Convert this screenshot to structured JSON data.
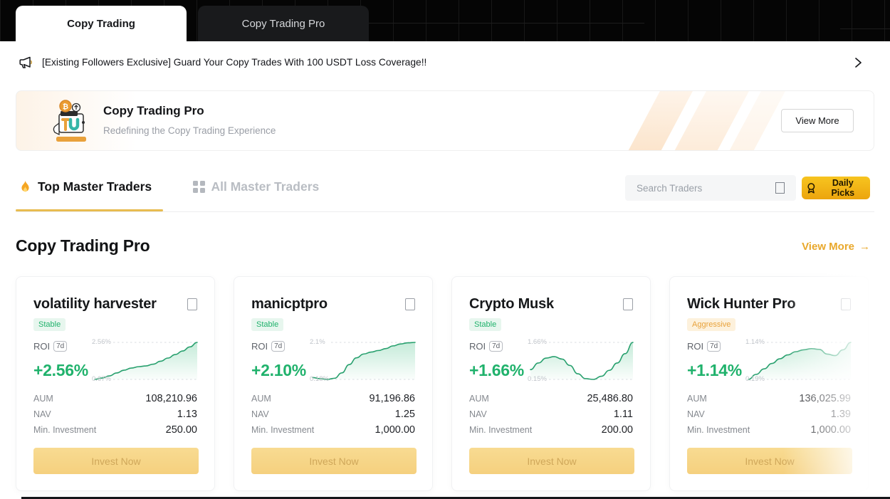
{
  "header": {
    "tabs": [
      {
        "label": "Copy Trading",
        "active": true
      },
      {
        "label": "Copy Trading Pro",
        "active": false
      }
    ]
  },
  "announcement": {
    "text": "[Existing Followers Exclusive] Guard Your Copy Trades With 100 USDT Loss Coverage!!"
  },
  "promo": {
    "title": "Copy Trading Pro",
    "subtitle": "Redefining the Copy Trading Experience",
    "button": "View More"
  },
  "nav_tabs": {
    "top_masters": "Top Master Traders",
    "all_masters": "All Master Traders"
  },
  "search": {
    "placeholder": "Search Traders"
  },
  "daily_picks": {
    "label": "Daily Picks"
  },
  "section": {
    "title": "Copy Trading Pro",
    "view_more": "View More",
    "arrow": "→"
  },
  "labels": {
    "roi": "ROI",
    "period": "7d",
    "aum": "AUM",
    "nav": "NAV",
    "min_investment": "Min. Investment",
    "invest": "Invest Now"
  },
  "cards": [
    {
      "name": "volatility harvester",
      "badge": "Stable",
      "badge_type": "stable",
      "roi": "+2.56%",
      "chart_high": "2.56%",
      "chart_low": "0.67%",
      "aum": "108,210.96",
      "nav": "1.13",
      "min_investment": "250.00"
    },
    {
      "name": "manicptpro",
      "badge": "Stable",
      "badge_type": "stable",
      "roi": "+2.10%",
      "chart_high": "2.1%",
      "chart_low": "0.18%",
      "aum": "91,196.86",
      "nav": "1.25",
      "min_investment": "1,000.00"
    },
    {
      "name": "Crypto Musk",
      "badge": "Stable",
      "badge_type": "stable",
      "roi": "+1.66%",
      "chart_high": "1.66%",
      "chart_low": "0.15%",
      "aum": "25,486.80",
      "nav": "1.11",
      "min_investment": "200.00"
    },
    {
      "name": "Wick Hunter Pro",
      "badge": "Aggressive",
      "badge_type": "aggressive",
      "roi": "+1.14%",
      "chart_high": "1.14%",
      "chart_low": "0.19%",
      "aum": "136,025.99",
      "nav": "1.39",
      "min_investment": "1,000.00"
    }
  ],
  "chart_data": [
    {
      "type": "line",
      "trader": "volatility harvester",
      "ylabel": "ROI %",
      "high": 2.56,
      "low": 0.67,
      "values": [
        0.67,
        0.74,
        0.85,
        1.0,
        1.14,
        1.25,
        1.32,
        1.36,
        1.45,
        1.6,
        1.76,
        1.94,
        2.12,
        2.33,
        2.56
      ]
    },
    {
      "type": "line",
      "trader": "manicptpro",
      "ylabel": "ROI %",
      "high": 2.1,
      "low": 0.18,
      "values": [
        0.28,
        0.22,
        0.18,
        0.24,
        0.52,
        0.95,
        1.3,
        1.5,
        1.6,
        1.68,
        1.78,
        1.92,
        2.02,
        2.08,
        2.1
      ]
    },
    {
      "type": "line",
      "trader": "Crypto Musk",
      "ylabel": "ROI %",
      "high": 1.66,
      "low": 0.15,
      "values": [
        0.55,
        0.82,
        1.02,
        1.08,
        0.98,
        0.72,
        0.38,
        0.18,
        0.15,
        0.28,
        0.52,
        0.82,
        1.2,
        1.66
      ]
    },
    {
      "type": "line",
      "trader": "Wick Hunter Pro",
      "ylabel": "ROI %",
      "high": 1.14,
      "low": 0.19,
      "values": [
        0.19,
        0.32,
        0.46,
        0.6,
        0.72,
        0.82,
        0.9,
        0.95,
        0.98,
        0.96,
        0.84,
        0.8,
        0.95,
        1.14
      ]
    }
  ],
  "colors": {
    "accent_green": "#20b26c",
    "accent_gold": "#f7a600",
    "daily_picks_bg": "#f2b515",
    "invest_button_bg": "#f6d488",
    "tab_underline": "#e8bc50",
    "view_more_gold": "#e9a82b",
    "badge_stable_bg": "#e7f6ee",
    "badge_aggressive_bg": "#fdf1dc",
    "header_bg": "#050505"
  }
}
